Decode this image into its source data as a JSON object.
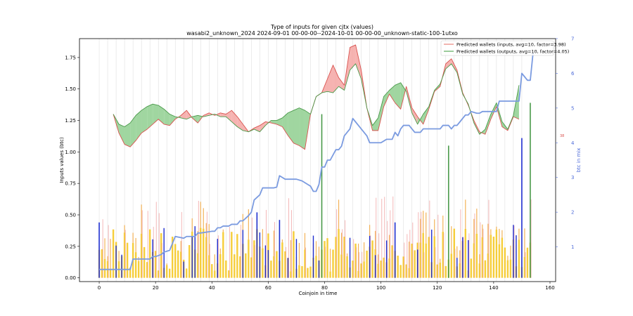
{
  "chart_data": {
    "type": "line",
    "title": "Type of inputs for given cjtx (values)",
    "subtitle": "wasabi2_unknown_2024 2024-09-01 00-00-00--2024-10-01 00-00-00_unknown-static-100-1utxo",
    "xlabel": "Coinjoin in time",
    "ylabel": "Inputs values (btc)",
    "y2label": "btc in mix",
    "xlim": [
      -7,
      162
    ],
    "ylim": [
      -0.03,
      1.9
    ],
    "y2lim": [
      0.0,
      7.0
    ],
    "xticks": [
      0,
      20,
      40,
      60,
      80,
      100,
      120,
      140,
      160
    ],
    "yticks": [
      0.0,
      0.25,
      0.5,
      0.75,
      1.0,
      1.25,
      1.5,
      1.75
    ],
    "y2ticks": [
      1,
      2,
      3,
      4,
      5,
      6,
      7
    ],
    "y2_right_marker": "38",
    "legend": {
      "position": "top-right",
      "entries": [
        {
          "label": "Predicted wallets (inputs, avg=10, factor=3.98)",
          "color": "#e8837b"
        },
        {
          "label": "Predicted wallets (outputs, avg=10, factor=4.05)",
          "color": "#5aaa5a"
        }
      ]
    },
    "series": [
      {
        "name": "Predicted wallets (inputs, avg=10, factor=3.98)",
        "color": "#d9534f",
        "x": [
          5,
          7,
          9,
          11,
          13,
          15,
          17,
          19,
          21,
          23,
          25,
          27,
          29,
          31,
          33,
          35,
          37,
          39,
          41,
          43,
          45,
          47,
          49,
          51,
          53,
          55,
          57,
          59,
          61,
          63,
          65,
          67,
          69,
          71,
          73,
          75,
          77,
          79,
          81,
          83,
          85,
          87,
          89,
          91,
          93,
          95,
          97,
          99,
          101,
          103,
          105,
          107,
          109,
          111,
          113,
          115,
          117,
          119,
          121,
          123,
          125,
          127,
          129,
          131,
          133,
          135,
          137,
          139,
          141,
          143,
          145,
          147,
          149
        ],
        "values": [
          1.3,
          1.15,
          1.06,
          1.04,
          1.09,
          1.15,
          1.18,
          1.22,
          1.26,
          1.22,
          1.21,
          1.26,
          1.29,
          1.33,
          1.27,
          1.23,
          1.29,
          1.31,
          1.29,
          1.31,
          1.3,
          1.33,
          1.28,
          1.22,
          1.16,
          1.19,
          1.21,
          1.24,
          1.23,
          1.22,
          1.2,
          1.13,
          1.07,
          1.05,
          1.02,
          1.3,
          1.44,
          1.47,
          1.58,
          1.69,
          1.59,
          1.53,
          1.83,
          1.85,
          1.65,
          1.35,
          1.17,
          1.17,
          1.36,
          1.46,
          1.39,
          1.34,
          1.52,
          1.35,
          1.28,
          1.22,
          1.34,
          1.48,
          1.52,
          1.7,
          1.74,
          1.65,
          1.47,
          1.37,
          1.25,
          1.16,
          1.14,
          1.26,
          1.36,
          1.2,
          1.17,
          1.28,
          1.26
        ]
      },
      {
        "name": "Predicted wallets (outputs, avg=10, factor=4.05)",
        "color": "#4a9a4a",
        "x": [
          5,
          7,
          9,
          11,
          13,
          15,
          17,
          19,
          21,
          23,
          25,
          27,
          29,
          31,
          33,
          35,
          37,
          39,
          41,
          43,
          45,
          47,
          49,
          51,
          53,
          55,
          57,
          59,
          61,
          63,
          65,
          67,
          69,
          71,
          73,
          75,
          77,
          79,
          81,
          83,
          85,
          87,
          89,
          91,
          93,
          95,
          97,
          99,
          101,
          103,
          105,
          107,
          109,
          111,
          113,
          115,
          117,
          119,
          121,
          123,
          125,
          127,
          129,
          131,
          133,
          135,
          137,
          139,
          141,
          143,
          145,
          147,
          149
        ],
        "values": [
          1.3,
          1.22,
          1.2,
          1.23,
          1.29,
          1.33,
          1.36,
          1.38,
          1.37,
          1.34,
          1.3,
          1.28,
          1.27,
          1.26,
          1.28,
          1.29,
          1.28,
          1.29,
          1.3,
          1.28,
          1.28,
          1.24,
          1.2,
          1.17,
          1.16,
          1.18,
          1.16,
          1.21,
          1.25,
          1.25,
          1.27,
          1.31,
          1.33,
          1.35,
          1.33,
          1.3,
          1.44,
          1.47,
          1.48,
          1.47,
          1.52,
          1.49,
          1.65,
          1.7,
          1.58,
          1.35,
          1.21,
          1.27,
          1.44,
          1.49,
          1.53,
          1.55,
          1.48,
          1.31,
          1.22,
          1.3,
          1.36,
          1.49,
          1.54,
          1.66,
          1.7,
          1.63,
          1.46,
          1.38,
          1.23,
          1.14,
          1.18,
          1.3,
          1.39,
          1.24,
          1.18,
          1.29,
          1.53
        ]
      },
      {
        "name": "btc in mix",
        "axis": "right",
        "color": "#7b9be0",
        "x": [
          0,
          5,
          10,
          11,
          12,
          18,
          19,
          20,
          22,
          23,
          25,
          26,
          27,
          30,
          31,
          34,
          35,
          36,
          40,
          41,
          42,
          43,
          44,
          46,
          47,
          49,
          50,
          51,
          53,
          54,
          55,
          57,
          58,
          60,
          62,
          63,
          64,
          66,
          67,
          70,
          72,
          73,
          74,
          75,
          76,
          77,
          78,
          79,
          80,
          81,
          82,
          84,
          85,
          86,
          87,
          88,
          89,
          90,
          91,
          92,
          93,
          95,
          96,
          97,
          99,
          100,
          101,
          102,
          104,
          105,
          106,
          107,
          108,
          110,
          111,
          112,
          114,
          115,
          116,
          118,
          120,
          121,
          122,
          124,
          125,
          126,
          127,
          128,
          130,
          131,
          132,
          134,
          135,
          136,
          137,
          138,
          140,
          141,
          142,
          143,
          144,
          145,
          146,
          147,
          148,
          149,
          150,
          151,
          152,
          153,
          154
        ],
        "values": [
          0.35,
          0.35,
          0.35,
          0.35,
          0.65,
          0.65,
          0.72,
          0.72,
          0.78,
          0.85,
          0.9,
          1.1,
          1.3,
          1.25,
          1.3,
          1.3,
          1.4,
          1.4,
          1.45,
          1.45,
          1.55,
          1.55,
          1.6,
          1.6,
          1.65,
          1.65,
          1.75,
          1.75,
          1.9,
          2.0,
          2.35,
          2.5,
          2.7,
          2.7,
          2.7,
          2.72,
          3.05,
          2.95,
          2.95,
          2.95,
          2.9,
          2.85,
          2.8,
          2.75,
          2.6,
          2.6,
          2.8,
          3.3,
          3.3,
          3.5,
          3.5,
          3.8,
          3.8,
          3.9,
          4.2,
          4.3,
          4.4,
          4.7,
          4.6,
          4.5,
          4.4,
          4.2,
          4.0,
          4.0,
          4.0,
          4.0,
          4.05,
          4.1,
          4.1,
          4.3,
          4.2,
          4.4,
          4.5,
          4.5,
          4.4,
          4.3,
          4.3,
          4.4,
          4.4,
          4.4,
          4.4,
          4.4,
          4.5,
          4.5,
          4.4,
          4.5,
          4.5,
          4.6,
          4.8,
          4.8,
          4.9,
          4.85,
          4.85,
          4.9,
          4.9,
          4.9,
          4.9,
          4.9,
          5.2,
          5.2,
          5.2,
          5.2,
          5.2,
          5.2,
          5.2,
          5.2,
          6.0,
          5.9,
          5.8,
          5.8,
          6.6
        ]
      }
    ]
  }
}
